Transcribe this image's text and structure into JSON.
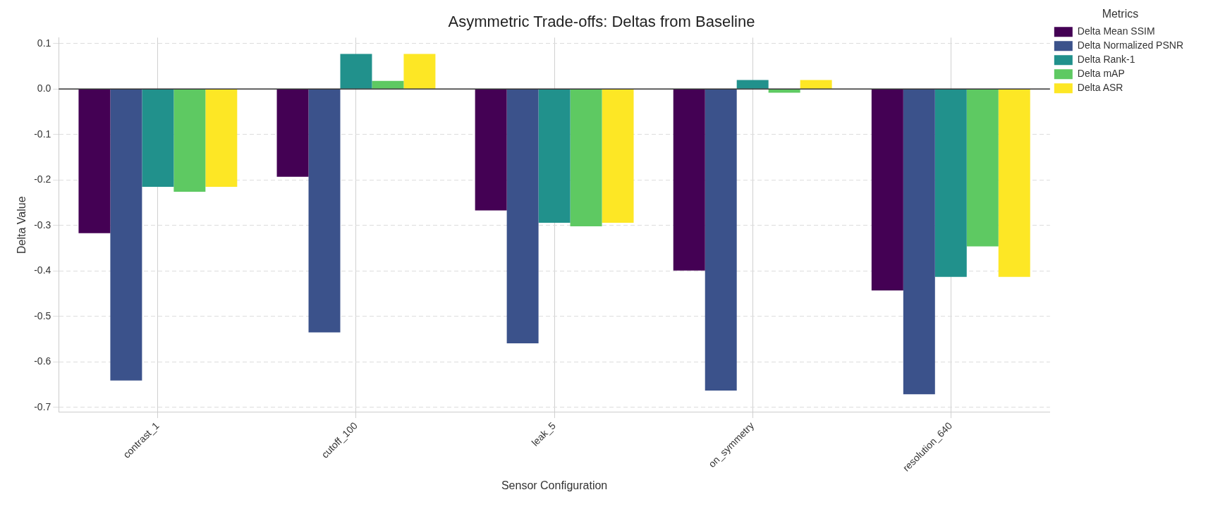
{
  "chart_data": {
    "type": "bar",
    "title": "Asymmetric Trade-offs: Deltas from Baseline",
    "xlabel": "Sensor Configuration",
    "ylabel": "Delta Value",
    "legend_title": "Metrics",
    "categories": [
      "contrast_1",
      "cutoff_100",
      "leak_5",
      "on_symmetry",
      "resolution_640"
    ],
    "series": [
      {
        "name": "Delta Mean SSIM",
        "color": "#440154",
        "values": [
          -0.317,
          -0.193,
          -0.267,
          -0.399,
          -0.443
        ]
      },
      {
        "name": "Delta Normalized PSNR",
        "color": "#3b528b",
        "values": [
          -0.641,
          -0.535,
          -0.559,
          -0.663,
          -0.671
        ]
      },
      {
        "name": "Delta Rank-1",
        "color": "#21918c",
        "values": [
          -0.215,
          0.077,
          -0.294,
          0.02,
          -0.413
        ]
      },
      {
        "name": "Delta mAP",
        "color": "#5ec962",
        "values": [
          -0.226,
          0.018,
          -0.302,
          -0.008,
          -0.346
        ]
      },
      {
        "name": "Delta ASR",
        "color": "#fde725",
        "values": [
          -0.215,
          0.077,
          -0.294,
          0.02,
          -0.413
        ]
      }
    ],
    "ylim": [
      -0.711,
      0.113
    ],
    "yticks": [
      {
        "value": 0.1,
        "label": "0.1"
      },
      {
        "value": 0,
        "label": "0.0"
      },
      -0.1,
      -0.2,
      -0.3,
      -0.4,
      -0.5,
      -0.6,
      -0.7
    ],
    "ref_lines": [
      {
        "axis": "y",
        "value": 0,
        "color": "#333333"
      }
    ],
    "grid": true,
    "legend": "right"
  }
}
